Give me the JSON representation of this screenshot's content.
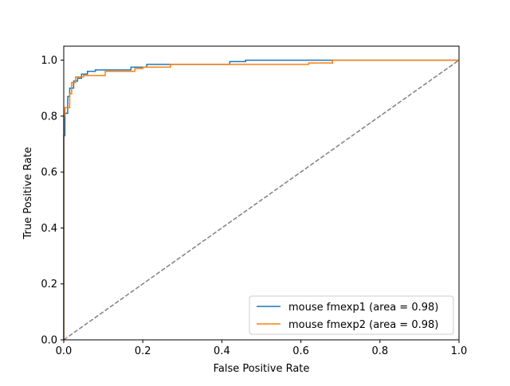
{
  "chart_data": {
    "type": "line",
    "title": "",
    "xlabel": "False Positive Rate",
    "ylabel": "True Positive Rate",
    "xlim": [
      0.0,
      1.0
    ],
    "ylim": [
      0.0,
      1.05
    ],
    "xticks": [
      0.0,
      0.2,
      0.4,
      0.6,
      0.8,
      1.0
    ],
    "yticks": [
      0.0,
      0.2,
      0.4,
      0.6,
      0.8,
      1.0
    ],
    "xtick_labels": [
      "0.0",
      "0.2",
      "0.4",
      "0.6",
      "0.8",
      "1.0"
    ],
    "ytick_labels": [
      "0.0",
      "0.2",
      "0.4",
      "0.6",
      "0.8",
      "1.0"
    ],
    "grid": false,
    "legend_position": "lower-right",
    "series": [
      {
        "name": "mouse fmexp1 (area = 0.98)",
        "color": "#1f77b4",
        "style": "step",
        "x": [
          0.0,
          0.0,
          0.003,
          0.003,
          0.01,
          0.01,
          0.015,
          0.015,
          0.025,
          0.025,
          0.035,
          0.035,
          0.045,
          0.045,
          0.06,
          0.06,
          0.08,
          0.08,
          0.17,
          0.17,
          0.21,
          0.21,
          0.42,
          0.42,
          0.46,
          0.46,
          1.0
        ],
        "y": [
          0.0,
          0.73,
          0.73,
          0.81,
          0.81,
          0.87,
          0.87,
          0.9,
          0.9,
          0.925,
          0.925,
          0.935,
          0.935,
          0.95,
          0.95,
          0.96,
          0.96,
          0.965,
          0.965,
          0.975,
          0.975,
          0.985,
          0.985,
          0.995,
          0.995,
          1.0,
          1.0
        ]
      },
      {
        "name": "mouse fmexp2 (area = 0.98)",
        "color": "#ff7f0e",
        "style": "step",
        "x": [
          0.0,
          0.0,
          0.003,
          0.003,
          0.015,
          0.015,
          0.02,
          0.02,
          0.03,
          0.03,
          0.05,
          0.05,
          0.105,
          0.105,
          0.18,
          0.18,
          0.2,
          0.2,
          0.27,
          0.27,
          0.62,
          0.62,
          0.68,
          0.68,
          1.0
        ],
        "y": [
          0.0,
          0.8,
          0.8,
          0.83,
          0.83,
          0.88,
          0.88,
          0.92,
          0.92,
          0.94,
          0.94,
          0.945,
          0.945,
          0.96,
          0.96,
          0.97,
          0.97,
          0.975,
          0.975,
          0.985,
          0.985,
          0.99,
          0.99,
          1.0,
          1.0
        ]
      },
      {
        "name": "",
        "color": "#808080",
        "style": "dashed",
        "x": [
          0.0,
          1.0
        ],
        "y": [
          0.0,
          1.0
        ]
      }
    ]
  }
}
